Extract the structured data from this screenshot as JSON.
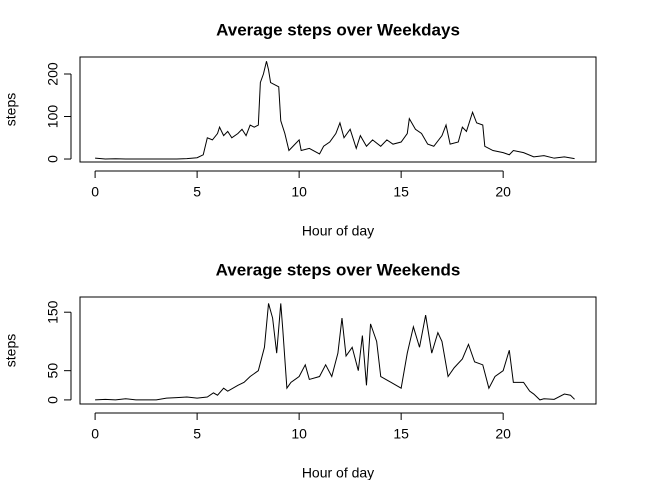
{
  "chart_data": [
    {
      "type": "line",
      "title": "Average steps over Weekdays",
      "xlabel": "Hour of day",
      "ylabel": "steps",
      "color": "#000000",
      "x": [
        0,
        0.5,
        1,
        1.5,
        2,
        2.5,
        3,
        3.5,
        4,
        4.5,
        5,
        5.3,
        5.5,
        5.75,
        6,
        6.1,
        6.3,
        6.5,
        6.7,
        7,
        7.2,
        7.4,
        7.6,
        7.8,
        8,
        8.1,
        8.25,
        8.4,
        8.5,
        8.6,
        8.8,
        9,
        9.1,
        9.3,
        9.5,
        9.7,
        10,
        10.1,
        10.5,
        11,
        11.2,
        11.5,
        11.8,
        12,
        12.2,
        12.5,
        12.8,
        13,
        13.3,
        13.6,
        14,
        14.3,
        14.6,
        15,
        15.3,
        15.4,
        15.7,
        16,
        16.3,
        16.6,
        17,
        17.2,
        17.4,
        17.8,
        18,
        18.2,
        18.5,
        18.7,
        19,
        19.1,
        19.5,
        20,
        20.3,
        20.5,
        21,
        21.5,
        22,
        22.5,
        23,
        23.5
      ],
      "values": [
        2,
        0,
        0.5,
        0,
        0,
        0,
        0,
        0,
        0,
        1,
        3,
        10,
        50,
        45,
        60,
        75,
        55,
        65,
        50,
        60,
        70,
        55,
        80,
        75,
        80,
        180,
        200,
        230,
        210,
        180,
        175,
        170,
        90,
        60,
        20,
        30,
        45,
        20,
        25,
        12,
        30,
        40,
        60,
        85,
        50,
        70,
        25,
        55,
        30,
        45,
        30,
        45,
        35,
        40,
        60,
        95,
        70,
        60,
        35,
        30,
        55,
        80,
        35,
        40,
        75,
        65,
        110,
        85,
        80,
        30,
        20,
        15,
        10,
        20,
        15,
        5,
        8,
        2,
        5,
        1
      ],
      "xlim": [
        -0.74,
        24.55
      ],
      "ylim": [
        -7,
        240
      ],
      "xticks": [
        0,
        5,
        10,
        15,
        20
      ],
      "yticks": [
        0,
        100,
        200
      ]
    },
    {
      "type": "line",
      "title": "Average steps over Weekends",
      "xlabel": "Hour of day",
      "ylabel": "steps",
      "color": "#000000",
      "x": [
        0,
        0.5,
        1,
        1.5,
        2,
        3,
        3.5,
        4,
        4.5,
        5,
        5.5,
        5.8,
        6,
        6.3,
        6.5,
        7,
        7.3,
        7.6,
        8,
        8.3,
        8.5,
        8.7,
        8.9,
        9.1,
        9.2,
        9.4,
        9.6,
        10,
        10.3,
        10.5,
        11,
        11.3,
        11.6,
        11.9,
        12.1,
        12.3,
        12.6,
        12.9,
        13.1,
        13.3,
        13.5,
        13.8,
        14,
        14.5,
        15,
        15.3,
        15.6,
        15.9,
        16.2,
        16.5,
        16.8,
        17,
        17.3,
        17.6,
        18,
        18.3,
        18.6,
        19,
        19.3,
        19.6,
        20,
        20.3,
        20.5,
        21,
        21.3,
        21.5,
        21.8,
        22,
        22.5,
        23,
        23.3,
        23.5
      ],
      "values": [
        0,
        1,
        0,
        2,
        0,
        0,
        3,
        4,
        5,
        3,
        5,
        12,
        8,
        20,
        15,
        25,
        30,
        40,
        50,
        90,
        165,
        140,
        80,
        165,
        120,
        20,
        30,
        40,
        60,
        35,
        40,
        60,
        40,
        80,
        140,
        75,
        90,
        50,
        110,
        25,
        130,
        100,
        40,
        30,
        20,
        80,
        125,
        90,
        145,
        80,
        115,
        100,
        40,
        55,
        70,
        95,
        65,
        60,
        20,
        40,
        50,
        85,
        30,
        30,
        15,
        10,
        0,
        2,
        1,
        10,
        8,
        1
      ],
      "xlim": [
        -0.74,
        24.55
      ],
      "ylim": [
        -7,
        176
      ],
      "xticks": [
        0,
        5,
        10,
        15,
        20
      ],
      "yticks": [
        0,
        50,
        150
      ]
    }
  ]
}
